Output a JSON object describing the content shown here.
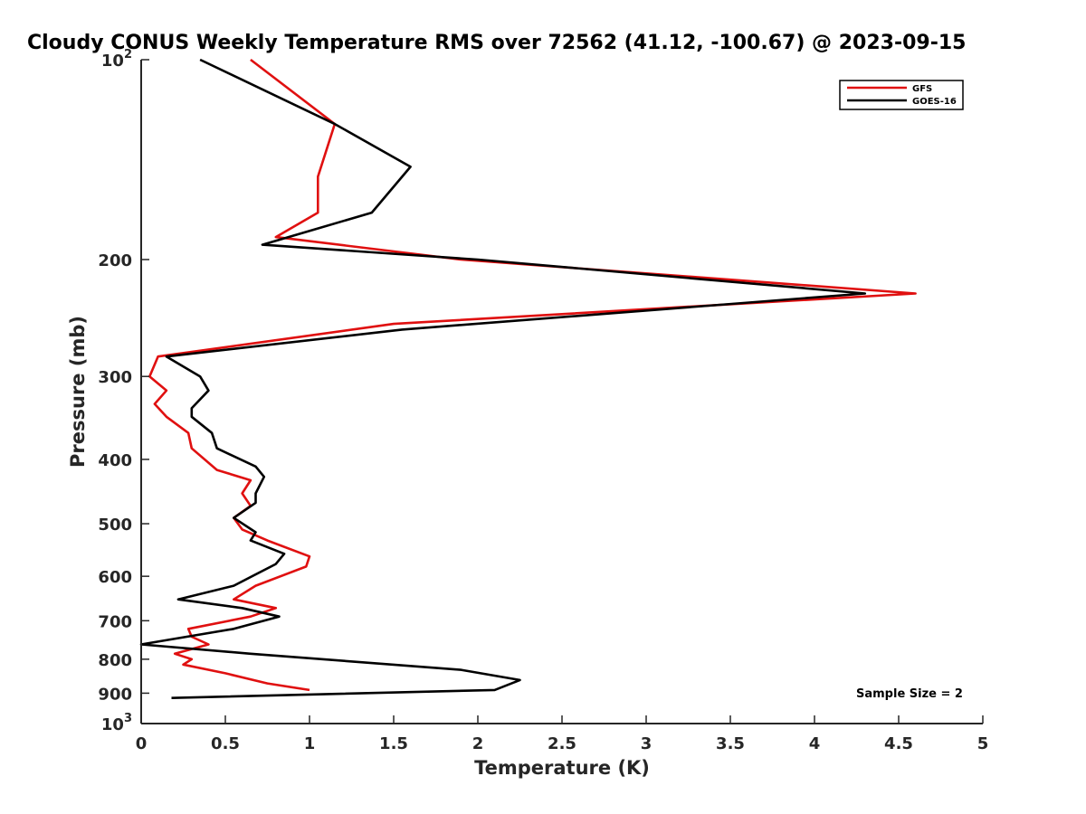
{
  "chart_data": {
    "type": "line",
    "title": "Cloudy CONUS Weekly Temperature RMS over 72562 (41.12, -100.67) @ 2023-09-15",
    "xlabel": "Temperature (K)",
    "ylabel": "Pressure (mb)",
    "xlim": [
      0,
      5
    ],
    "ylim": [
      100,
      1000
    ],
    "y_scale": "log",
    "y_reversed": true,
    "x_ticks": [
      "0",
      "0.5",
      "1",
      "1.5",
      "2",
      "2.5",
      "3",
      "3.5",
      "4",
      "4.5",
      "5"
    ],
    "y_ticks": [
      {
        "value": 100,
        "base": "10",
        "exp": "2"
      },
      {
        "value": 200,
        "label": "200"
      },
      {
        "value": 300,
        "label": "300"
      },
      {
        "value": 400,
        "label": "400"
      },
      {
        "value": 500,
        "label": "500"
      },
      {
        "value": 600,
        "label": "600"
      },
      {
        "value": 700,
        "label": "700"
      },
      {
        "value": 800,
        "label": "800"
      },
      {
        "value": 900,
        "label": "900"
      },
      {
        "value": 1000,
        "base": "10",
        "exp": "3"
      }
    ],
    "grid": false,
    "legend_position": "top-right",
    "annotation": "Sample Size = 2",
    "series": [
      {
        "name": "GFS",
        "color": "#e01010",
        "points": [
          [
            0.65,
            100
          ],
          [
            1.15,
            125
          ],
          [
            1.05,
            150
          ],
          [
            1.05,
            170
          ],
          [
            0.8,
            185
          ],
          [
            1.9,
            200
          ],
          [
            4.6,
            225
          ],
          [
            1.5,
            250
          ],
          [
            0.1,
            280
          ],
          [
            0.05,
            300
          ],
          [
            0.15,
            315
          ],
          [
            0.08,
            330
          ],
          [
            0.15,
            345
          ],
          [
            0.28,
            365
          ],
          [
            0.3,
            385
          ],
          [
            0.45,
            415
          ],
          [
            0.65,
            430
          ],
          [
            0.6,
            450
          ],
          [
            0.65,
            470
          ],
          [
            0.55,
            490
          ],
          [
            0.6,
            510
          ],
          [
            0.75,
            530
          ],
          [
            1.0,
            560
          ],
          [
            0.98,
            580
          ],
          [
            0.68,
            620
          ],
          [
            0.55,
            650
          ],
          [
            0.8,
            670
          ],
          [
            0.65,
            690
          ],
          [
            0.28,
            720
          ],
          [
            0.3,
            740
          ],
          [
            0.4,
            760
          ],
          [
            0.2,
            785
          ],
          [
            0.3,
            800
          ],
          [
            0.25,
            815
          ],
          [
            0.5,
            840
          ],
          [
            0.75,
            870
          ],
          [
            1.0,
            890
          ]
        ]
      },
      {
        "name": "GOES-16",
        "color": "#000000",
        "points": [
          [
            0.35,
            100
          ],
          [
            1.15,
            125
          ],
          [
            1.6,
            145
          ],
          [
            1.37,
            170
          ],
          [
            0.72,
            190
          ],
          [
            2.0,
            200
          ],
          [
            4.3,
            225
          ],
          [
            1.55,
            255
          ],
          [
            0.15,
            280
          ],
          [
            0.35,
            300
          ],
          [
            0.4,
            315
          ],
          [
            0.3,
            335
          ],
          [
            0.3,
            345
          ],
          [
            0.42,
            365
          ],
          [
            0.45,
            385
          ],
          [
            0.68,
            410
          ],
          [
            0.73,
            425
          ],
          [
            0.68,
            450
          ],
          [
            0.68,
            465
          ],
          [
            0.55,
            490
          ],
          [
            0.68,
            515
          ],
          [
            0.65,
            530
          ],
          [
            0.85,
            555
          ],
          [
            0.8,
            575
          ],
          [
            0.55,
            620
          ],
          [
            0.22,
            650
          ],
          [
            0.6,
            670
          ],
          [
            0.82,
            690
          ],
          [
            0.55,
            720
          ],
          [
            0.0,
            760
          ],
          [
            0.65,
            785
          ],
          [
            1.9,
            830
          ],
          [
            2.25,
            860
          ],
          [
            2.1,
            890
          ],
          [
            0.18,
            915
          ]
        ]
      }
    ]
  }
}
